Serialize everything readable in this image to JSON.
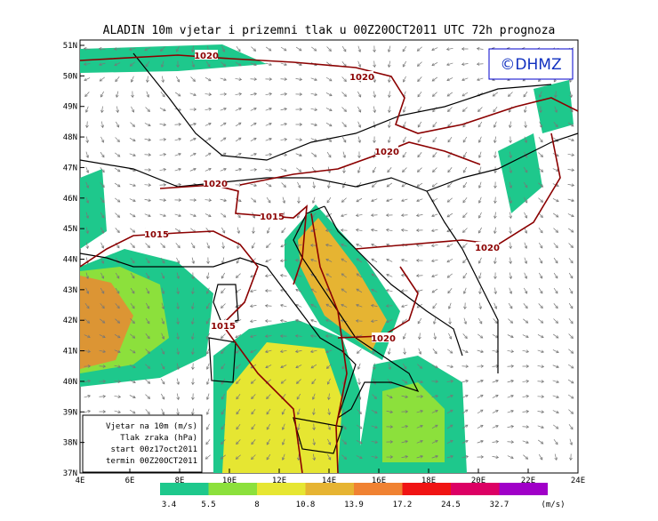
{
  "title": "ALADIN 10m vjetar i prizemni tlak u 00Z20OCT2011 UTC 72h prognoza",
  "logo": "©DHMZ",
  "lat_labels": [
    "51N",
    "50N",
    "49N",
    "48N",
    "47N",
    "46N",
    "45N",
    "44N",
    "43N",
    "42N",
    "41N",
    "40N",
    "39N",
    "38N",
    "37N"
  ],
  "lon_labels": [
    "4E",
    "6E",
    "8E",
    "10E",
    "12E",
    "14E",
    "16E",
    "18E",
    "20E",
    "22E",
    "24E"
  ],
  "isobars": [
    "1020",
    "1020",
    "1020",
    "1020",
    "1015",
    "1015",
    "1020",
    "1015",
    "1020"
  ],
  "info": [
    "Vjetar na 10m (m/s)",
    "Tlak zraka (hPa)",
    "start 00z17oct2011",
    "termin 00Z20OCT2011"
  ],
  "colorbar": {
    "labels": [
      "3.4",
      "5.5",
      "8",
      "10.8",
      "13.9",
      "17.2",
      "24.5",
      "32.7"
    ],
    "unit": "(m/s)",
    "colors": [
      "#1ec88c",
      "#8ce03c",
      "#e6e632",
      "#e6b432",
      "#f08232",
      "#f01414",
      "#dc0064",
      "#a000c8"
    ]
  }
}
